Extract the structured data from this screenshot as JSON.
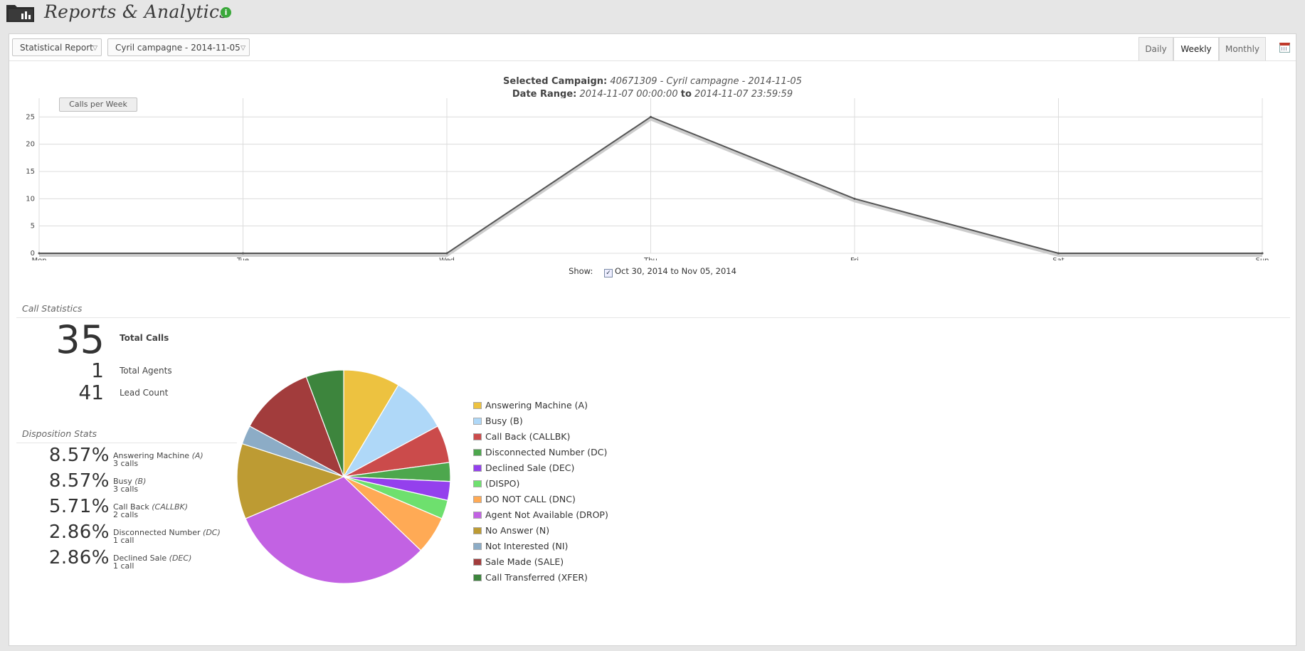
{
  "header": {
    "title": "Reports & Analytics",
    "info_icon": "info-icon"
  },
  "toolbar": {
    "report_type": "Statistical Report",
    "campaign": "Cyril campagne - 2014-11-05",
    "tabs": [
      {
        "label": "Daily",
        "active": false
      },
      {
        "label": "Weekly",
        "active": true
      },
      {
        "label": "Monthly",
        "active": false
      }
    ],
    "calendar_icon": "calendar-icon"
  },
  "selection": {
    "campaign_label": "Selected Campaign:",
    "campaign_value": "40671309 - Cyril campagne - 2014-11-05",
    "range_label": "Date Range:",
    "range_start": "2014-11-07 00:00:00",
    "range_to": "to",
    "range_end": "2014-11-07 23:59:59"
  },
  "chart_data": {
    "type": "line",
    "categories": [
      "Mon",
      "Tue",
      "Wed",
      "Thu",
      "Fri",
      "Sat",
      "Sun"
    ],
    "series": [
      {
        "name": "Calls per Week",
        "values": [
          0,
          0,
          0,
          25,
          10,
          0,
          0
        ]
      }
    ],
    "ylim": [
      0,
      30
    ],
    "yticks": [
      0,
      5,
      10,
      15,
      20,
      25,
      30
    ],
    "grid": true,
    "color": "#555555"
  },
  "show": {
    "label": "Show:",
    "checked": true,
    "range": "Oct 30, 2014 to Nov 05, 2014"
  },
  "call_stats": {
    "title": "Call Statistics",
    "items": [
      {
        "value": "35",
        "label": "Total Calls"
      },
      {
        "value": "1",
        "label": "Total Agents"
      },
      {
        "value": "41",
        "label": "Lead Count"
      }
    ]
  },
  "disposition": {
    "title": "Disposition Stats",
    "items": [
      {
        "pct": "8.57%",
        "name": "Answering Machine",
        "code": "(A)",
        "calls": "3 calls"
      },
      {
        "pct": "8.57%",
        "name": "Busy",
        "code": "(B)",
        "calls": "3 calls"
      },
      {
        "pct": "5.71%",
        "name": "Call Back",
        "code": "(CALLBK)",
        "calls": "2 calls"
      },
      {
        "pct": "2.86%",
        "name": "Disconnected Number",
        "code": "(DC)",
        "calls": "1 call"
      },
      {
        "pct": "2.86%",
        "name": "Declined Sale",
        "code": "(DEC)",
        "calls": "1 call"
      }
    ]
  },
  "pie": {
    "slices": [
      {
        "label": "Answering Machine (A)",
        "value": 3,
        "color": "#EDC240"
      },
      {
        "label": "Busy (B)",
        "value": 3,
        "color": "#AFD8F8"
      },
      {
        "label": "Call Back (CALLBK)",
        "value": 2,
        "color": "#CB4B4B"
      },
      {
        "label": "Disconnected Number (DC)",
        "value": 1,
        "color": "#4DA74D"
      },
      {
        "label": "Declined Sale (DEC)",
        "value": 1,
        "color": "#9440ED"
      },
      {
        "label": "(DISPO)",
        "value": 1,
        "color": "#6EE06E"
      },
      {
        "label": "DO NOT CALL (DNC)",
        "value": 2,
        "color": "#FFAA55"
      },
      {
        "label": "Agent Not Available (DROP)",
        "value": 11,
        "color": "#C262E3"
      },
      {
        "label": "No Answer (N)",
        "value": 4,
        "color": "#BD9B33"
      },
      {
        "label": "Not Interested (NI)",
        "value": 1,
        "color": "#8CACC6"
      },
      {
        "label": "Sale Made (SALE)",
        "value": 4,
        "color": "#A23C3C"
      },
      {
        "label": "Call Transferred (XFER)",
        "value": 2,
        "color": "#3D853D"
      }
    ]
  }
}
